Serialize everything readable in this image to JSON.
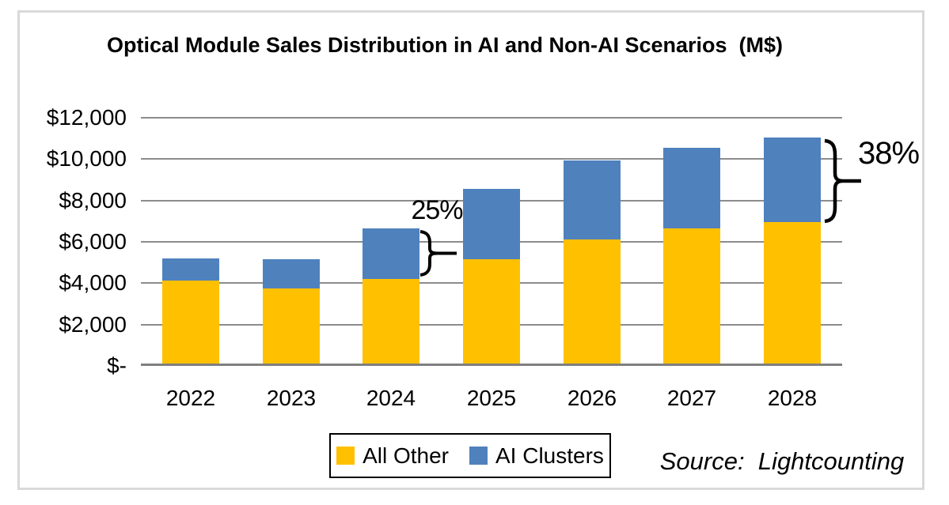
{
  "title": "Optical Module Sales Distribution in AI and Non-AI Scenarios  (M$)",
  "source_caption": "Source:  Lightcounting",
  "legend": {
    "items": [
      {
        "label": "All Other",
        "color": "#FFC000"
      },
      {
        "label": "AI Clusters",
        "color": "#4F81BD"
      }
    ]
  },
  "chart_data": {
    "type": "bar",
    "stacked": true,
    "title": "Optical Module Sales Distribution in AI and Non-AI Scenarios  (M$)",
    "categories": [
      "2022",
      "2023",
      "2024",
      "2025",
      "2026",
      "2027",
      "2028"
    ],
    "series": [
      {
        "name": "All Other",
        "color": "#FFC000",
        "values": [
          4000,
          3630,
          4080,
          5050,
          6000,
          6520,
          6830
        ]
      },
      {
        "name": "AI Clusters",
        "color": "#4F81BD",
        "values": [
          1070,
          1410,
          2450,
          3400,
          3820,
          3900,
          4080
        ]
      }
    ],
    "totals": [
      5070,
      5040,
      6530,
      8450,
      9820,
      10420,
      10910
    ],
    "xlabel": "",
    "ylabel": "",
    "ylim": [
      0,
      12000
    ],
    "ystep": 2000,
    "ytick_labels_top_to_bottom": [
      "$12,000",
      "$10,000",
      "$8,000",
      "$6,000",
      "$4,000",
      "$2,000",
      "$-"
    ],
    "grid": true,
    "legend_position": "bottom",
    "annotations": [
      {
        "label": "25%",
        "target_year": "2024",
        "target_series": "AI Clusters"
      },
      {
        "label": "38%",
        "target_year": "2028",
        "target_series": "AI Clusters"
      }
    ]
  },
  "colors": {
    "all_other": "#FFC000",
    "ai_clusters": "#4F81BD",
    "gridline": "#8C8C8C",
    "axis_line": "#7f7f7f",
    "frame_border": "#D9D9D9"
  }
}
